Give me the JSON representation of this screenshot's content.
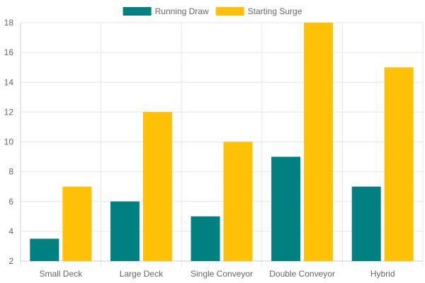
{
  "chart_data": {
    "type": "bar",
    "categories": [
      "Small Deck",
      "Large Deck",
      "Single Conveyor",
      "Double Conveyor",
      "Hybrid"
    ],
    "series": [
      {
        "name": "Running Draw",
        "values": [
          3.5,
          6,
          5,
          9,
          7
        ],
        "color": "#008080"
      },
      {
        "name": "Starting Surge",
        "values": [
          7,
          12,
          10,
          18,
          15
        ],
        "color": "#FFC107"
      }
    ],
    "title": "",
    "xlabel": "",
    "ylabel": "",
    "ylim": [
      2,
      18
    ],
    "yticks": [
      2,
      4,
      6,
      8,
      10,
      12,
      14,
      16,
      18
    ],
    "grid": true,
    "legend_position": "top-center"
  }
}
